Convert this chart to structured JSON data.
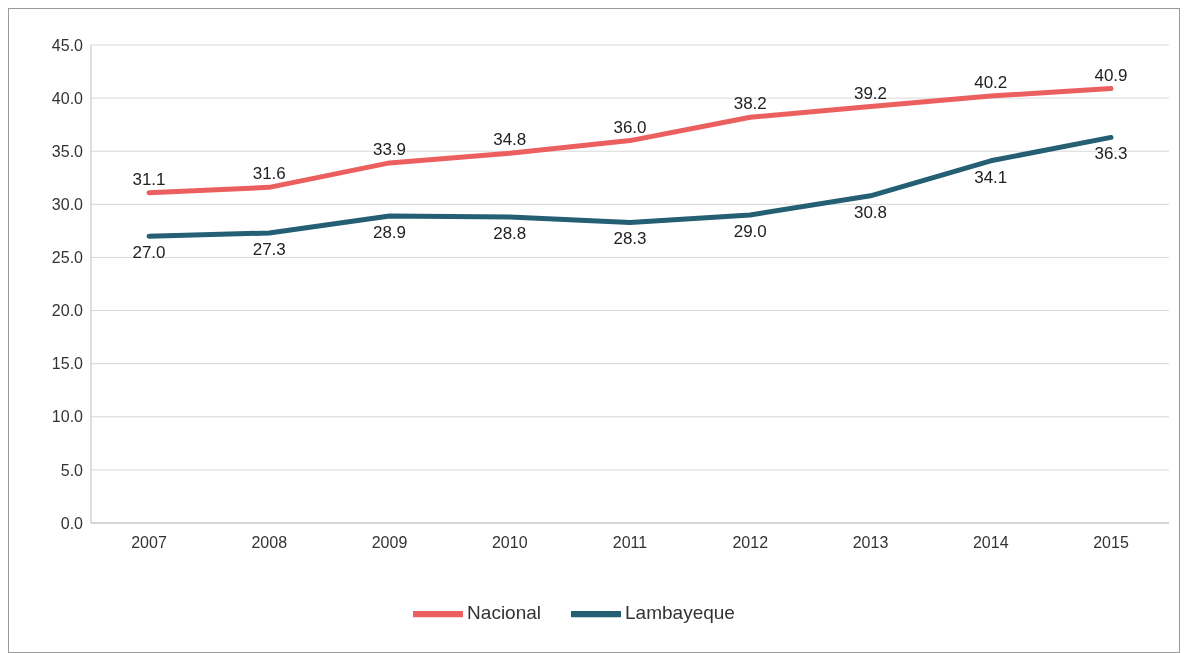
{
  "chart_data": {
    "type": "line",
    "categories": [
      "2007",
      "2008",
      "2009",
      "2010",
      "2011",
      "2012",
      "2013",
      "2014",
      "2015"
    ],
    "series": [
      {
        "name": "Nacional",
        "color": "#ec5f5f",
        "values": [
          31.1,
          31.6,
          33.9,
          34.8,
          36.0,
          38.2,
          39.2,
          40.2,
          40.9
        ],
        "value_labels": [
          "31.1",
          "31.6",
          "33.9",
          "34.8",
          "36.0",
          "38.2",
          "39.2",
          "40.2",
          "40.9"
        ]
      },
      {
        "name": "Lambayeque",
        "color": "#245f73",
        "values": [
          27.0,
          27.3,
          28.9,
          28.8,
          28.3,
          29.0,
          30.8,
          34.1,
          36.3
        ],
        "value_labels": [
          "27.0",
          "27.3",
          "28.9",
          "28.8",
          "28.3",
          "29.0",
          "30.8",
          "34.1",
          "36.3"
        ]
      }
    ],
    "ylim": [
      0,
      45
    ],
    "yticks": [
      {
        "value": 0,
        "label": "0.0"
      },
      {
        "value": 5,
        "label": "5.0"
      },
      {
        "value": 10,
        "label": "10.0"
      },
      {
        "value": 15,
        "label": "15.0"
      },
      {
        "value": 20,
        "label": "20.0"
      },
      {
        "value": 25,
        "label": "25.0"
      },
      {
        "value": 30,
        "label": "30.0"
      },
      {
        "value": 35,
        "label": "35.0"
      },
      {
        "value": 40,
        "label": "40.0"
      },
      {
        "value": 45,
        "label": "45.0"
      }
    ],
    "grid": "y",
    "legend": "bottom",
    "marker": "none",
    "line_style": "solid"
  }
}
